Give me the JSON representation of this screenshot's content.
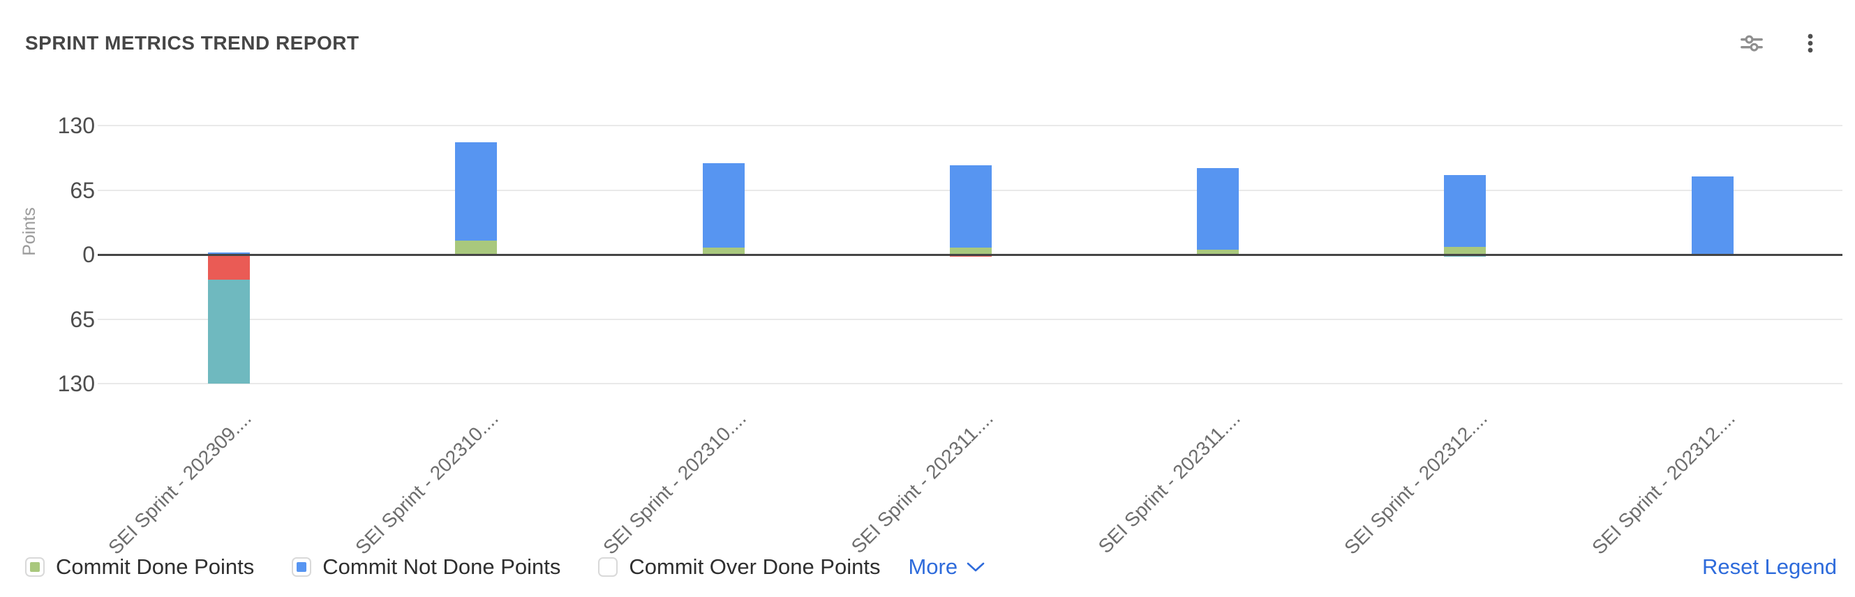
{
  "header": {
    "title": "SPRINT METRICS TREND REPORT",
    "icons": [
      {
        "name": "filter-sliders-icon"
      },
      {
        "name": "kebab-menu-icon"
      }
    ]
  },
  "legend": {
    "items": [
      {
        "label": "Commit Done Points",
        "color": "#a9c87d",
        "checked": true
      },
      {
        "label": "Commit Not Done Points",
        "color": "#5795f1",
        "checked": true
      },
      {
        "label": "Commit Over Done Points",
        "color": "#ffffff",
        "checked": false
      }
    ],
    "more_label": "More",
    "reset_label": "Reset Legend"
  },
  "chart_data": {
    "type": "bar",
    "stacked": true,
    "title": "SPRINT METRICS TREND REPORT",
    "xlabel": "",
    "ylabel": "Points",
    "ytick_values": [
      130,
      65,
      0,
      -65,
      -130
    ],
    "ytick_labels": [
      "130",
      "65",
      "0",
      "65",
      "130"
    ],
    "ylim": [
      -143,
      143
    ],
    "grid": true,
    "legend_position": "bottom",
    "categories": [
      "SEI Sprint - 202309....",
      "SEI Sprint - 202310....",
      "SEI Sprint - 202310....",
      "SEI Sprint - 202311....",
      "SEI Sprint - 202311....",
      "SEI Sprint - 202312....",
      "SEI Sprint - 202312...."
    ],
    "series": [
      {
        "name": "Commit Done Points",
        "color": "#a9c87d",
        "values": [
          0,
          14,
          7,
          7,
          5,
          8,
          0
        ]
      },
      {
        "name": "Commit Not Done Points",
        "color": "#5795f1",
        "values": [
          2,
          99,
          85,
          83,
          82,
          72,
          79
        ]
      },
      {
        "name": "Commit Over Done Points",
        "color": "#ffffff",
        "values": [
          0,
          0,
          0,
          0,
          0,
          0,
          0
        ]
      },
      {
        "name": "hidden-series-red",
        "color": "#ea5b55",
        "values": [
          -25,
          0,
          0,
          -2,
          0,
          0,
          0
        ]
      },
      {
        "name": "hidden-series-teal",
        "color": "#6fb9bf",
        "values": [
          -105,
          0,
          0,
          0,
          0,
          -2,
          0
        ]
      }
    ]
  }
}
